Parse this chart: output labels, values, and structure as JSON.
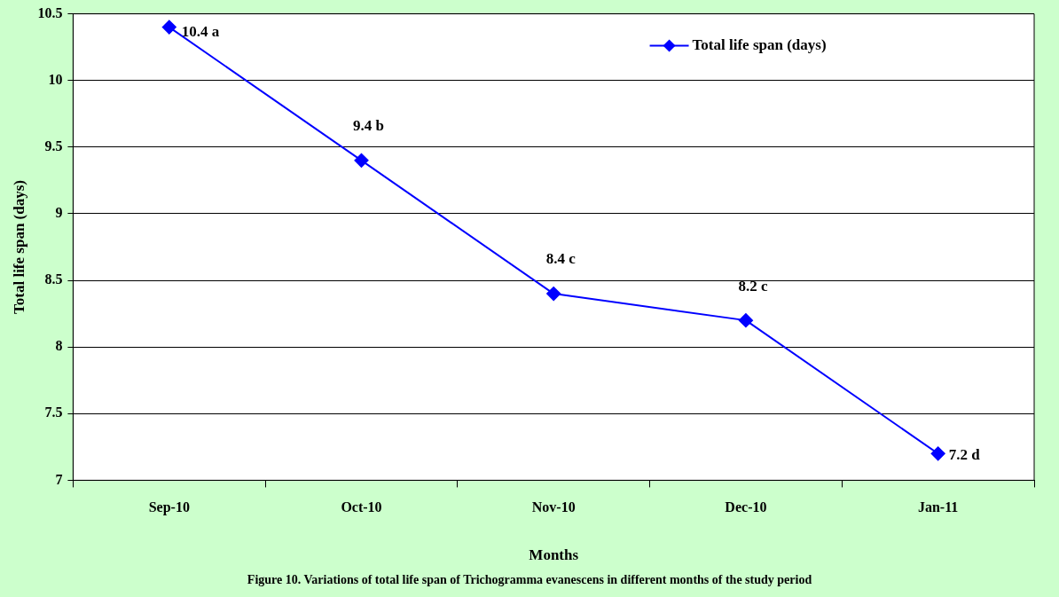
{
  "chart_data": {
    "type": "line",
    "categories": [
      "Sep-10",
      "Oct-10",
      "Nov-10",
      "Dec-10",
      "Jan-11"
    ],
    "series": [
      {
        "name": "Total life span (days)",
        "color": "#0000ff",
        "values": [
          10.4,
          9.4,
          8.4,
          8.2,
          7.2
        ],
        "value_labels": [
          "10.4 a",
          "9.4 b",
          "8.4 c",
          "8.2 c",
          "7.2 d"
        ]
      }
    ],
    "xlabel": "Months",
    "ylabel": "Total life span (days)",
    "ylim": [
      7,
      10.5
    ],
    "yticks": [
      7,
      7.5,
      8,
      8.5,
      9,
      9.5,
      10,
      10.5
    ],
    "grid": "y",
    "legend": "top right",
    "marker": "diamond",
    "line_style": "solid",
    "annotations": [
      "Figure 10. Variations of total life span of Trichogramma evanescens in different months of the study period"
    ]
  }
}
